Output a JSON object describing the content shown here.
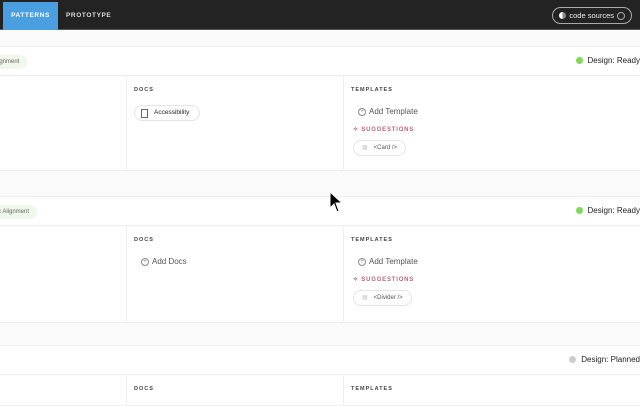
{
  "topbar": {
    "tabs": [
      {
        "label": "PATTERNS",
        "active": true
      },
      {
        "label": "PROTOTYPE",
        "active": false
      }
    ],
    "code_sources": "code sources"
  },
  "sections": [
    {
      "tag": "ignment",
      "status": "Design: Ready",
      "status_color": "#7ed957",
      "docs_label": "DOCS",
      "doc_chip": "Accessibility",
      "templates_label": "TEMPLATES",
      "add_template": "Add Template",
      "suggestions": "SUGGESTIONS",
      "suggestion_chip": "<Card />"
    },
    {
      "tag": "c Alignment",
      "status": "Design: Ready",
      "status_color": "#7ed957",
      "docs_label": "DOCS",
      "add_docs": "Add Docs",
      "templates_label": "TEMPLATES",
      "add_template": "Add Template",
      "suggestions": "SUGGESTIONS",
      "suggestion_chip": "<Divider />"
    },
    {
      "status": "Design: Planned",
      "status_color": "#cccccc",
      "docs_label": "DOCS",
      "templates_label": "TEMPLATES"
    }
  ]
}
